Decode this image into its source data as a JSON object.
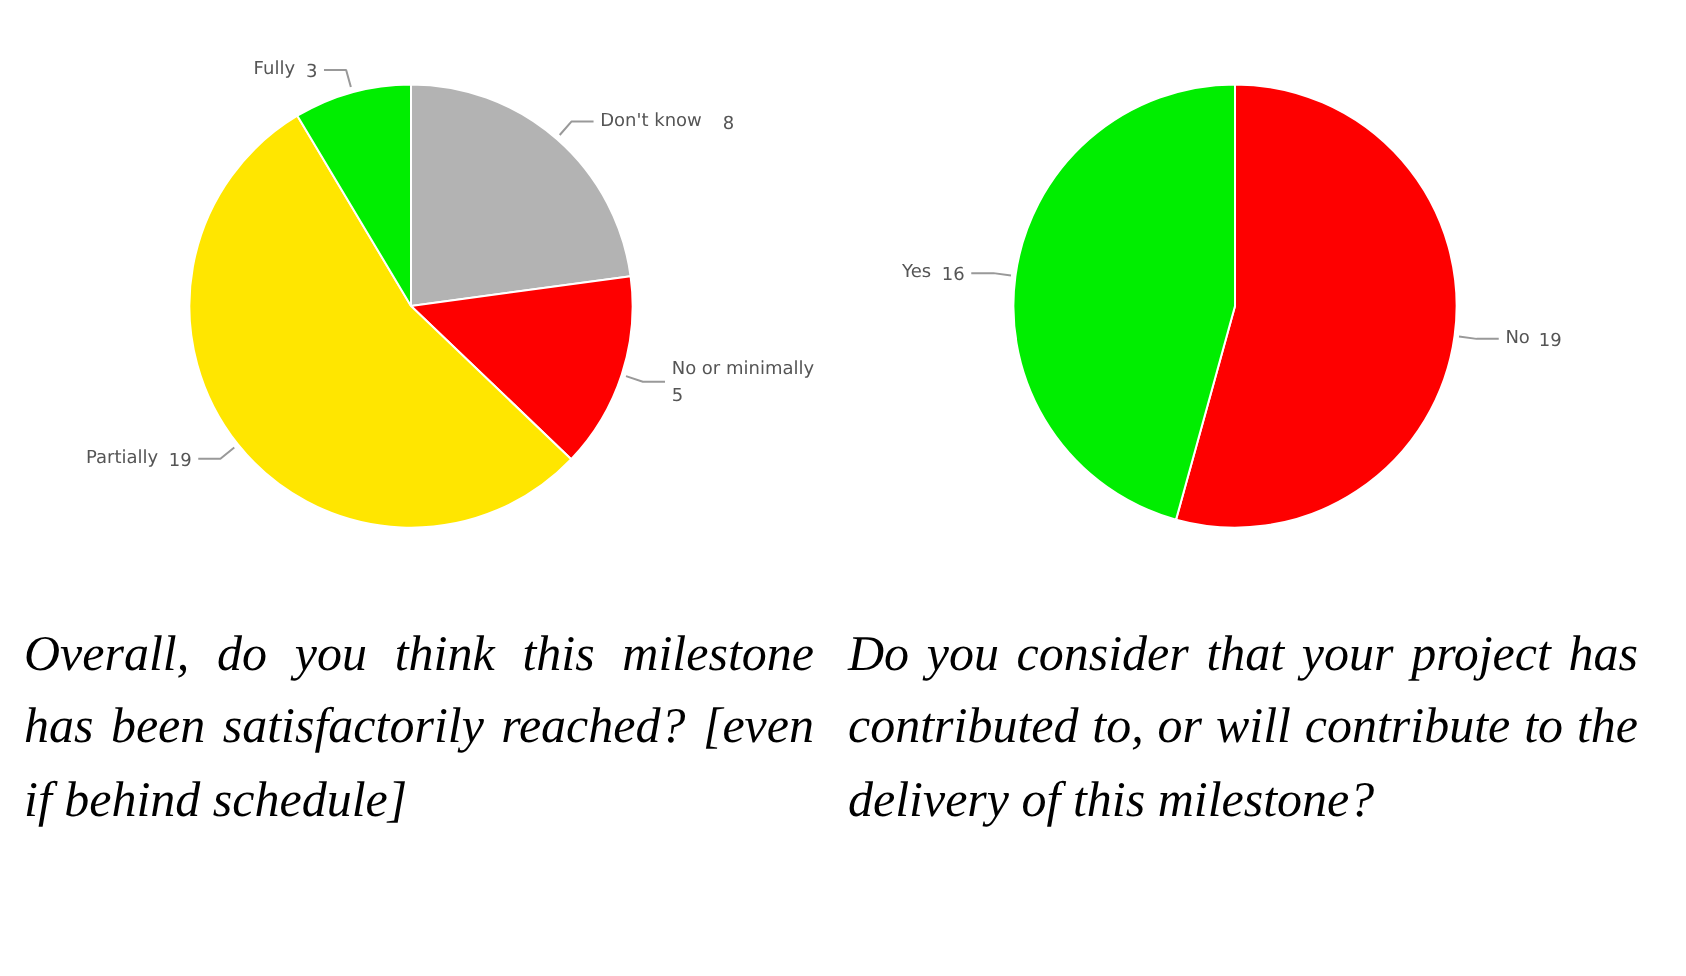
{
  "chart_data": [
    {
      "type": "pie",
      "categories": [
        "Don't know",
        "No or minimally",
        "Partially",
        "Fully"
      ],
      "values": [
        8,
        5,
        19,
        3
      ],
      "colors": [
        "#b3b3b3",
        "#fe0000",
        "#ffe600",
        "#00ee00"
      ],
      "data_labels": true,
      "annotations": [
        "Overall, do you think this milestone has been satisfactorily reached? [even if behind schedule]"
      ]
    },
    {
      "type": "pie",
      "categories": [
        "No",
        "Yes"
      ],
      "values": [
        19,
        16
      ],
      "colors": [
        "#fe0000",
        "#00ee00"
      ],
      "data_labels": true,
      "annotations": [
        "Do you consider that your project has contributed to, or will contribute to the delivery of this milestone?"
      ]
    }
  ]
}
